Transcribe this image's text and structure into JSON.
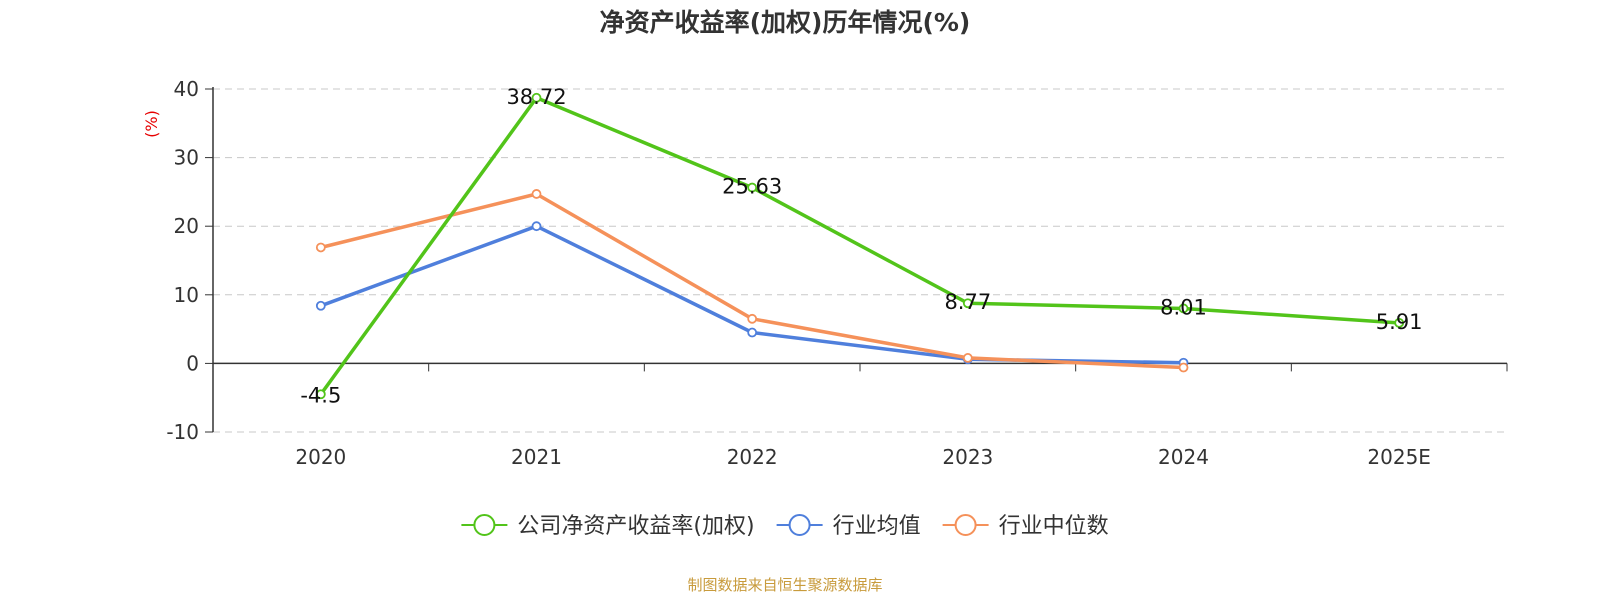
{
  "chart_data": {
    "type": "line",
    "title": "净资产收益率(加权)历年情况(%)",
    "ylabel": "(%)",
    "xlabel": "",
    "categories": [
      "2020",
      "2021",
      "2022",
      "2023",
      "2024",
      "2025E"
    ],
    "yticks": [
      -10,
      0,
      10,
      20,
      30,
      40
    ],
    "ylim": [
      -10,
      40
    ],
    "grid": true,
    "legend_position": "bottom",
    "series": [
      {
        "name": "公司净资产收益率(加权)",
        "color": "#52c41a",
        "values": [
          -4.5,
          38.72,
          25.63,
          8.77,
          8.01,
          5.91
        ],
        "labels": [
          "-4.5",
          "38.72",
          "25.63",
          "8.77",
          "8.01",
          "5.91"
        ],
        "show_labels": true
      },
      {
        "name": "行业均值",
        "color": "#4f7fdc",
        "values": [
          8.4,
          20.0,
          4.5,
          0.6,
          0.1,
          null
        ],
        "show_labels": false
      },
      {
        "name": "行业中位数",
        "color": "#f5915a",
        "values": [
          16.9,
          24.7,
          6.5,
          0.8,
          -0.6,
          null
        ],
        "show_labels": false
      }
    ],
    "source": "制图数据来自恒生聚源数据库"
  },
  "colors": {
    "title": "#333333",
    "axis": "#333333",
    "grid": "#c8c8c8",
    "ylabel": "#e60000",
    "source": "#c89b3c"
  }
}
